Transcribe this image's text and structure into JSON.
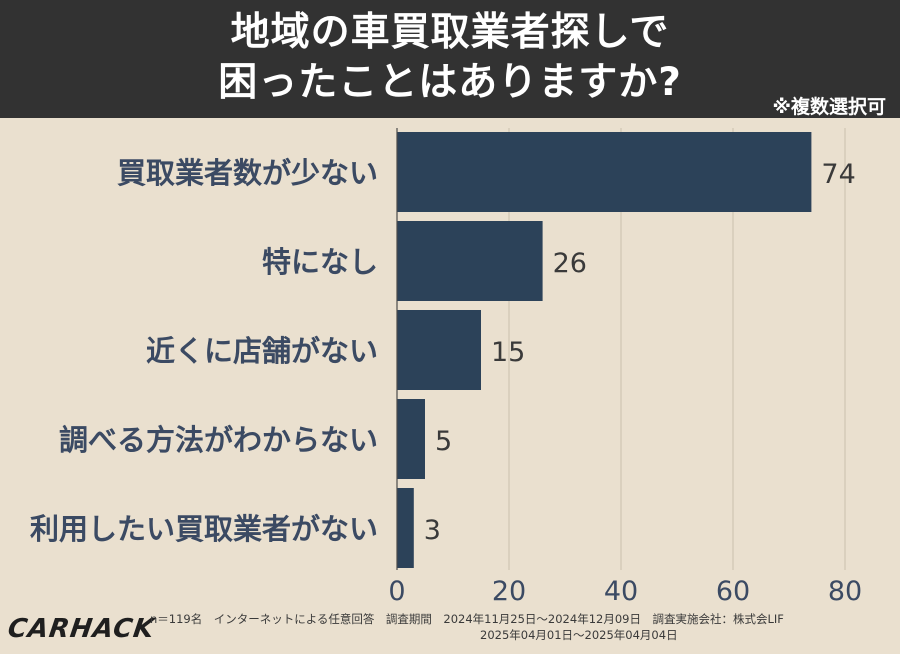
{
  "header": {
    "title_line1": "地域の車買取業者探しで",
    "title_line2": "困ったことはありますか?",
    "note": "※複数選択可"
  },
  "chart_data": {
    "type": "bar",
    "orientation": "horizontal",
    "categories": [
      "買取業者数が少ない",
      "特になし",
      "近くに店舗がない",
      "調べる方法がわからない",
      "利用したい買取業者がない"
    ],
    "values": [
      74,
      26,
      15,
      5,
      3
    ],
    "xlim": [
      0,
      80
    ],
    "xticks": [
      0,
      20,
      40,
      60,
      80
    ],
    "grid": true,
    "colors": {
      "bar": "#2c4259",
      "grid": "#d4cab8",
      "background": "#eae0cf"
    }
  },
  "footer": {
    "line1": "n＝119名　インターネットによる任意回答　調査期間　2024年11月25日～2024年12月09日　調査実施会社：株式会LIF",
    "line2": "2025年04月01日～2025年04月04日"
  },
  "logo": {
    "text": "CARHACK"
  }
}
